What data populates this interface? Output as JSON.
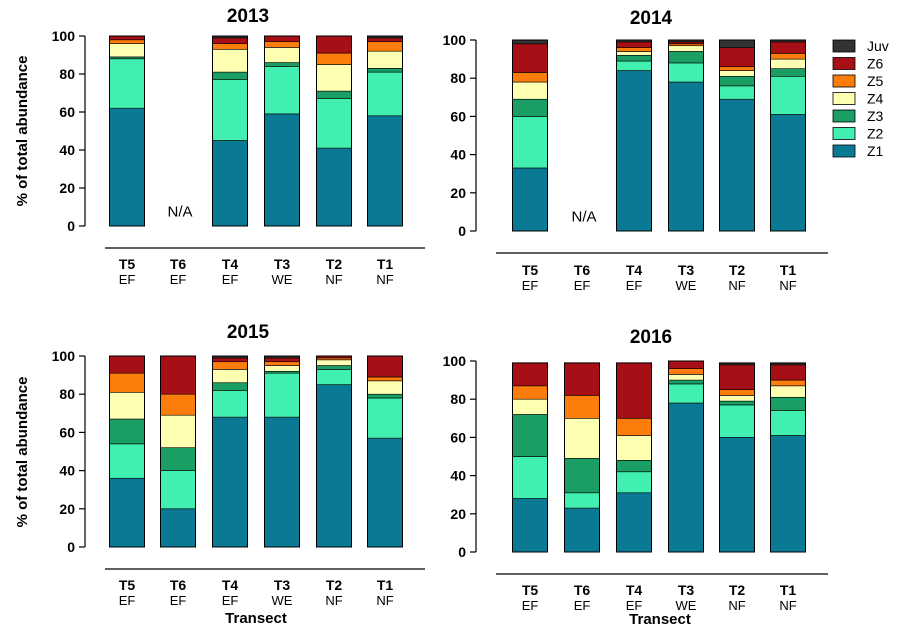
{
  "chart_data": [
    {
      "type": "bar",
      "stacked": true,
      "title": "2013",
      "ylabel": "% of total abundance",
      "xlabel": "",
      "ylim": [
        0,
        100
      ],
      "yticks": [
        0,
        20,
        40,
        60,
        80,
        100
      ],
      "categories": [
        "T5",
        "T6",
        "T4",
        "T3",
        "T2",
        "T1"
      ],
      "sublabels": [
        "EF",
        "EF",
        "EF",
        "WE",
        "NF",
        "NF"
      ],
      "missing_label": "N/A",
      "series": [
        {
          "name": "Z1",
          "values": [
            62,
            null,
            45,
            59,
            41,
            58
          ]
        },
        {
          "name": "Z2",
          "values": [
            26,
            null,
            32,
            25,
            26,
            23
          ]
        },
        {
          "name": "Z3",
          "values": [
            1,
            null,
            4,
            2,
            4,
            2
          ]
        },
        {
          "name": "Z4",
          "values": [
            7,
            null,
            12,
            8,
            14,
            9
          ]
        },
        {
          "name": "Z5",
          "values": [
            2,
            null,
            3,
            3,
            6,
            5
          ]
        },
        {
          "name": "Z6",
          "values": [
            2,
            null,
            3,
            3,
            9,
            2
          ]
        },
        {
          "name": "Juv",
          "values": [
            0,
            null,
            1,
            0,
            0,
            1
          ]
        }
      ]
    },
    {
      "type": "bar",
      "stacked": true,
      "title": "2014",
      "ylabel": "",
      "xlabel": "",
      "ylim": [
        0,
        100
      ],
      "yticks": [
        0,
        20,
        40,
        60,
        80,
        100
      ],
      "categories": [
        "T5",
        "T6",
        "T4",
        "T3",
        "T2",
        "T1"
      ],
      "sublabels": [
        "EF",
        "EF",
        "EF",
        "WE",
        "NF",
        "NF"
      ],
      "missing_label": "N/A",
      "series": [
        {
          "name": "Z1",
          "values": [
            33,
            null,
            84,
            78,
            69,
            61
          ]
        },
        {
          "name": "Z2",
          "values": [
            27,
            null,
            5,
            10,
            7,
            20
          ]
        },
        {
          "name": "Z3",
          "values": [
            9,
            null,
            3,
            6,
            5,
            4
          ]
        },
        {
          "name": "Z4",
          "values": [
            9,
            null,
            2,
            3,
            3,
            5
          ]
        },
        {
          "name": "Z5",
          "values": [
            5,
            null,
            2,
            1,
            2,
            3
          ]
        },
        {
          "name": "Z6",
          "values": [
            15,
            null,
            3,
            1,
            10,
            6
          ]
        },
        {
          "name": "Juv",
          "values": [
            2,
            null,
            1,
            1,
            4,
            1
          ]
        }
      ]
    },
    {
      "type": "bar",
      "stacked": true,
      "title": "2015",
      "ylabel": "% of total abundance",
      "xlabel": "Transect",
      "ylim": [
        0,
        100
      ],
      "yticks": [
        0,
        20,
        40,
        60,
        80,
        100
      ],
      "categories": [
        "T5",
        "T6",
        "T4",
        "T3",
        "T2",
        "T1"
      ],
      "sublabels": [
        "EF",
        "EF",
        "EF",
        "WE",
        "NF",
        "NF"
      ],
      "missing_label": "",
      "series": [
        {
          "name": "Z1",
          "values": [
            36,
            20,
            68,
            68,
            85,
            57
          ]
        },
        {
          "name": "Z2",
          "values": [
            18,
            20,
            14,
            23,
            8,
            21
          ]
        },
        {
          "name": "Z3",
          "values": [
            13,
            12,
            4,
            1,
            2,
            2
          ]
        },
        {
          "name": "Z4",
          "values": [
            14,
            17,
            7,
            3,
            3,
            7
          ]
        },
        {
          "name": "Z5",
          "values": [
            10,
            11,
            4,
            2,
            1,
            2
          ]
        },
        {
          "name": "Z6",
          "values": [
            9,
            20,
            2,
            2,
            1,
            11
          ]
        },
        {
          "name": "Juv",
          "values": [
            0,
            0,
            1,
            1,
            0,
            0
          ]
        }
      ]
    },
    {
      "type": "bar",
      "stacked": true,
      "title": "2016",
      "ylabel": "",
      "xlabel": "Transect",
      "ylim": [
        0,
        100
      ],
      "yticks": [
        0,
        20,
        40,
        60,
        80,
        100
      ],
      "categories": [
        "T5",
        "T6",
        "T4",
        "T3",
        "T2",
        "T1"
      ],
      "sublabels": [
        "EF",
        "EF",
        "EF",
        "WE",
        "NF",
        "NF"
      ],
      "missing_label": "",
      "series": [
        {
          "name": "Z1",
          "values": [
            28,
            23,
            31,
            78,
            60,
            61
          ]
        },
        {
          "name": "Z2",
          "values": [
            22,
            8,
            11,
            10,
            17,
            13
          ]
        },
        {
          "name": "Z3",
          "values": [
            22,
            18,
            6,
            2,
            2,
            7
          ]
        },
        {
          "name": "Z4",
          "values": [
            8,
            21,
            13,
            3,
            3,
            6
          ]
        },
        {
          "name": "Z5",
          "values": [
            7,
            12,
            9,
            3,
            3,
            3
          ]
        },
        {
          "name": "Z6",
          "values": [
            12,
            17,
            29,
            4,
            13,
            8
          ]
        },
        {
          "name": "Juv",
          "values": [
            0,
            0,
            0,
            0,
            1,
            1
          ]
        }
      ]
    }
  ],
  "legend": {
    "placement": "right",
    "entries": [
      {
        "name": "Juv",
        "color": "#333333"
      },
      {
        "name": "Z6",
        "color": "#a50f15"
      },
      {
        "name": "Z5",
        "color": "#fc7d0b"
      },
      {
        "name": "Z4",
        "color": "#ffffb2"
      },
      {
        "name": "Z3",
        "color": "#1a9e63"
      },
      {
        "name": "Z2",
        "color": "#41f0b0"
      },
      {
        "name": "Z1",
        "color": "#0a7a94"
      }
    ]
  },
  "colors": {
    "Z1": "#0a7a94",
    "Z2": "#41f0b0",
    "Z3": "#1a9e63",
    "Z4": "#ffffb2",
    "Z5": "#fc7d0b",
    "Z6": "#a50f15",
    "Juv": "#333333"
  }
}
